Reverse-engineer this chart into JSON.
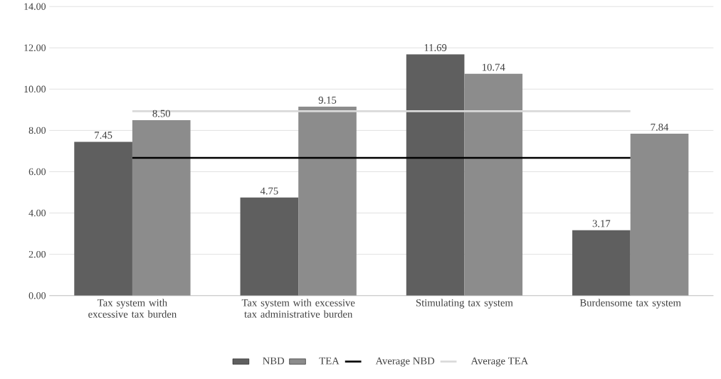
{
  "chart_data": {
    "type": "bar",
    "categories": [
      "Tax system with excessive tax burden",
      "Tax system with excessive tax administrative burden",
      "Stimulating tax system",
      "Burdensome tax system"
    ],
    "series": [
      {
        "name": "NBD",
        "color": "#5f5f5f",
        "values": [
          7.45,
          4.75,
          11.69,
          3.17
        ],
        "value_labels": [
          "7.45",
          "4.75",
          "11.69",
          "3.17"
        ]
      },
      {
        "name": "TEA",
        "color": "#8c8c8c",
        "values": [
          8.5,
          9.15,
          10.74,
          7.84
        ],
        "value_labels": [
          "8.50",
          "9.15",
          "10.74",
          "7.84"
        ]
      },
      {
        "name": "Average NBD",
        "type": "line",
        "color": "#000000",
        "values": [
          6.67,
          6.67,
          6.67,
          6.67
        ]
      },
      {
        "name": "Average TEA",
        "type": "line",
        "color": "#d9d9d9",
        "values": [
          8.93,
          8.93,
          8.93,
          8.93
        ]
      }
    ],
    "ylim": [
      0,
      14
    ],
    "yticks": [
      {
        "value": 0,
        "label": "0.00"
      },
      {
        "value": 2,
        "label": "2.00"
      },
      {
        "value": 4,
        "label": "4.00"
      },
      {
        "value": 6,
        "label": "6.00"
      },
      {
        "value": 8,
        "label": "8.00"
      },
      {
        "value": 10,
        "label": "10.00"
      },
      {
        "value": 12,
        "label": "12.00"
      },
      {
        "value": 14,
        "label": "14.00"
      }
    ],
    "grid": "y",
    "legend": "bottom",
    "marker": "none",
    "line_style": "solid"
  }
}
